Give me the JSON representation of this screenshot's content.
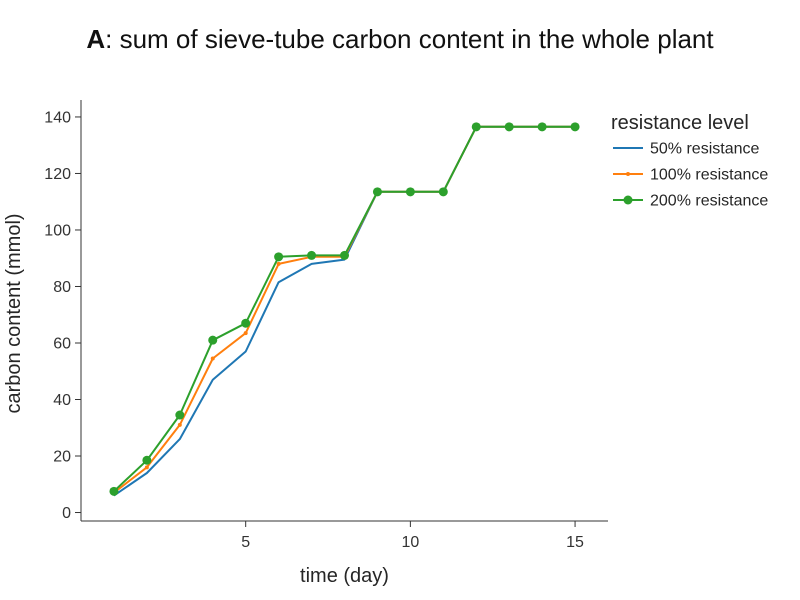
{
  "chart_data": {
    "type": "line",
    "title_letter": "A",
    "title_rest": ": sum of sieve-tube carbon content in the whole plant",
    "xlabel": "time (day)",
    "ylabel": "carbon content (mmol)",
    "xlim": [
      0.0,
      16.0
    ],
    "ylim": [
      -3,
      146
    ],
    "xticks": [
      5,
      10,
      15
    ],
    "yticks": [
      0,
      20,
      40,
      60,
      80,
      100,
      120,
      140
    ],
    "grid": false,
    "legend": {
      "title": "resistance level",
      "placement": "right"
    },
    "x": [
      1,
      2,
      3,
      4,
      5,
      6,
      7,
      8,
      9,
      10,
      11,
      12,
      13,
      14,
      15
    ],
    "series": [
      {
        "name": "50% resistance",
        "color": "#1f77b4",
        "marker": "none",
        "values": [
          6,
          14,
          26,
          47,
          57,
          81.5,
          88,
          89.5,
          113.5,
          113.5,
          113.5,
          136.5,
          136.5,
          136.5,
          136.5
        ]
      },
      {
        "name": "100% resistance",
        "color": "#ff7f0e",
        "marker": "small-dot",
        "values": [
          7,
          16,
          31,
          54.5,
          63.5,
          88,
          90.5,
          90.5,
          113.5,
          113.5,
          113.5,
          136.5,
          136.5,
          136.5,
          136.5
        ]
      },
      {
        "name": "200% resistance",
        "color": "#2ca02c",
        "marker": "dot",
        "values": [
          7.5,
          18.5,
          34.5,
          61,
          67,
          90.5,
          91,
          91,
          113.5,
          113.5,
          113.5,
          136.5,
          136.5,
          136.5,
          136.5
        ]
      }
    ]
  }
}
